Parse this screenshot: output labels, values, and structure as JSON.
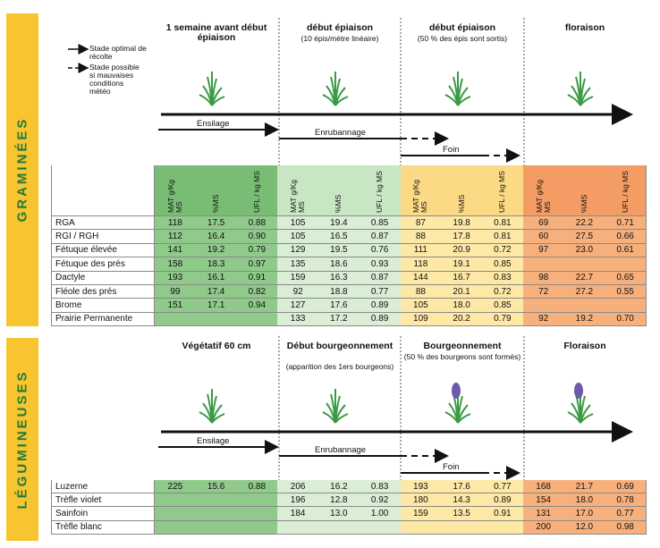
{
  "legend": {
    "optimal": "Stade optimal de récolte",
    "possible": "Stade possible si mauvaises conditions météo"
  },
  "graminees": {
    "section": "GRAMINÉES",
    "stages": [
      {
        "title": "1 semaine avant début épiaison"
      },
      {
        "title": "début épiaison",
        "note": "(10 épis/mètre linéaire)"
      },
      {
        "title": "début épiaison",
        "note": "(50 % des épis sont sortis)"
      },
      {
        "title": "floraison"
      }
    ],
    "harvest": [
      "Ensilage",
      "Enrubannage",
      "Foin"
    ],
    "columns": [
      "MAT g/Kg MS",
      "%MS",
      "UFL / kg MS"
    ],
    "rows": [
      {
        "name": "RGA",
        "cells": [
          "118",
          "17.5",
          "0.88",
          "105",
          "19.4",
          "0.85",
          "87",
          "19.8",
          "0.81",
          "69",
          "22.2",
          "0.71"
        ]
      },
      {
        "name": "RGI / RGH",
        "cells": [
          "112",
          "16.4",
          "0.90",
          "105",
          "16.5",
          "0.87",
          "88",
          "17.8",
          "0.81",
          "60",
          "27.5",
          "0.66"
        ]
      },
      {
        "name": "Fétuque élevée",
        "cells": [
          "141",
          "19.2",
          "0.79",
          "129",
          "19.5",
          "0.76",
          "111",
          "20.9",
          "0.72",
          "97",
          "23.0",
          "0.61"
        ]
      },
      {
        "name": "Fétuque des prés",
        "cells": [
          "158",
          "18.3",
          "0.97",
          "135",
          "18.6",
          "0.93",
          "118",
          "19.1",
          "0.85",
          null,
          null,
          null
        ]
      },
      {
        "name": "Dactyle",
        "cells": [
          "193",
          "16.1",
          "0.91",
          "159",
          "16.3",
          "0.87",
          "144",
          "16.7",
          "0.83",
          "98",
          "22.7",
          "0.65"
        ]
      },
      {
        "name": "Fléole des prés",
        "cells": [
          "99",
          "17.4",
          "0.82",
          "92",
          "18.8",
          "0.77",
          "88",
          "20.1",
          "0.72",
          "72",
          "27.2",
          "0.55"
        ]
      },
      {
        "name": "Brome",
        "cells": [
          "151",
          "17.1",
          "0.94",
          "127",
          "17.6",
          "0.89",
          "105",
          "18.0",
          "0.85",
          null,
          null,
          null
        ]
      },
      {
        "name": "Prairie Permanente",
        "cells": [
          null,
          null,
          null,
          "133",
          "17.2",
          "0.89",
          "109",
          "20.2",
          "0.79",
          "92",
          "19.2",
          "0.70"
        ]
      }
    ]
  },
  "legumineuses": {
    "section": "LÉGUMINEUSES",
    "stages": [
      {
        "title": "Végétatif 60 cm"
      },
      {
        "title": "Début bourgeonnement",
        "note": "(apparition des 1ers bourgeons)"
      },
      {
        "title": "Bourgeonnement",
        "note": "(50 % des bourgeons sont formés)"
      },
      {
        "title": "Floraison"
      }
    ],
    "harvest": [
      "Ensilage",
      "Enrubannage",
      "Foin"
    ],
    "rows": [
      {
        "name": "Luzerne",
        "cells": [
          "225",
          "15.6",
          "0.88",
          "206",
          "16.2",
          "0.83",
          "193",
          "17.6",
          "0.77",
          "168",
          "21.7",
          "0.69"
        ]
      },
      {
        "name": "Trèfle violet",
        "cells": [
          null,
          null,
          null,
          "196",
          "12.8",
          "0.92",
          "180",
          "14.3",
          "0.89",
          "154",
          "18.0",
          "0.78"
        ]
      },
      {
        "name": "Sainfoin",
        "cells": [
          null,
          null,
          null,
          "184",
          "13.0",
          "1.00",
          "159",
          "13.5",
          "0.91",
          "131",
          "17.0",
          "0.77"
        ]
      },
      {
        "name": "Trèfle blanc",
        "cells": [
          null,
          null,
          null,
          null,
          null,
          null,
          null,
          null,
          null,
          "200",
          "12.0",
          "0.98"
        ]
      }
    ]
  }
}
